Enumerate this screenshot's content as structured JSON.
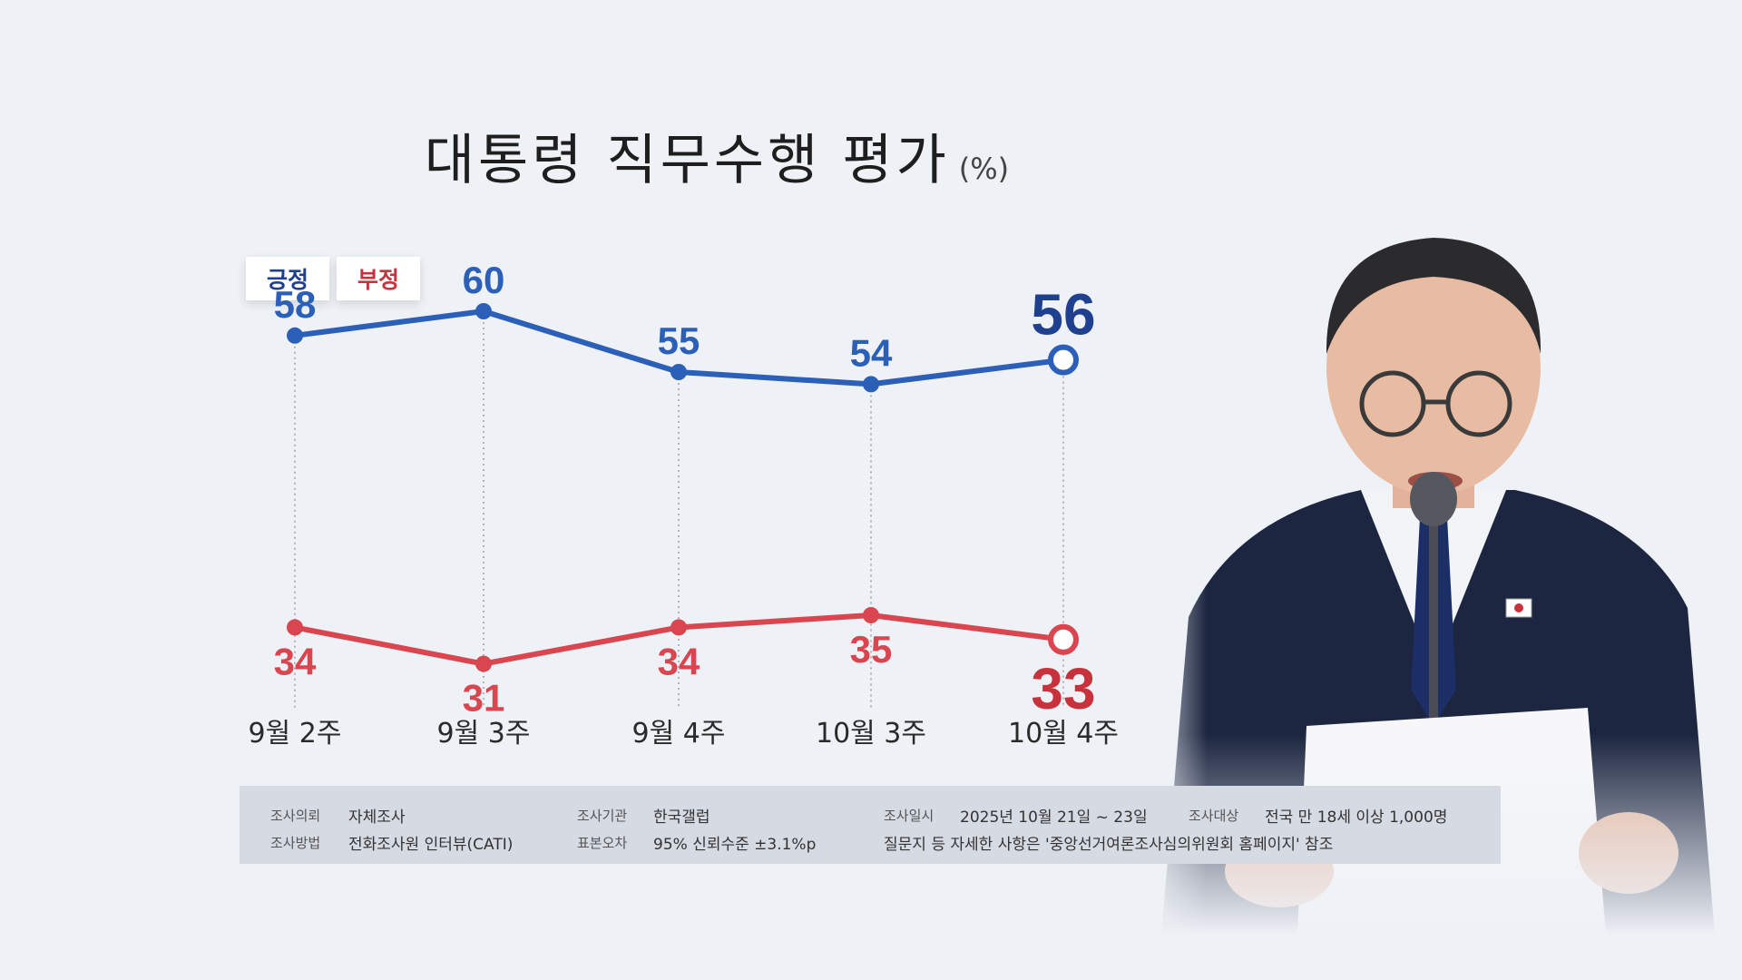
{
  "title": {
    "main": "대통령 직무수행 평가",
    "unit": "(%)"
  },
  "legend": {
    "positive": "긍정",
    "negative": "부정"
  },
  "colors": {
    "positive": "#2c5fb7",
    "negative": "#d9464f",
    "positive_dark": "#1f3f8f",
    "negative_dark": "#c8323c"
  },
  "chart_data": {
    "type": "line",
    "categories": [
      "9월 2주",
      "9월 3주",
      "9월 4주",
      "10월 3주",
      "10월 4주"
    ],
    "series": [
      {
        "name": "긍정",
        "values": [
          58,
          60,
          55,
          54,
          56
        ]
      },
      {
        "name": "부정",
        "values": [
          34,
          31,
          34,
          35,
          33
        ]
      }
    ],
    "grid": false,
    "legend_position": "top-left"
  },
  "info": {
    "client_label": "조사의뢰",
    "client_value": "자체조사",
    "agency_label": "조사기관",
    "agency_value": "한국갤럽",
    "date_label": "조사일시",
    "date_value": "2025년 10월 21일 ~ 23일",
    "target_label": "조사대상",
    "target_value": "전국 만 18세 이상 1,000명",
    "method_label": "조사방법",
    "method_value": "전화조사원 인터뷰(CATI)",
    "error_label": "표본오차",
    "error_value": "95% 신뢰수준 ±3.1%p",
    "note": "질문지 등 자세한 사항은 '중앙선거여론조사심의위원회 홈페이지' 참조"
  }
}
